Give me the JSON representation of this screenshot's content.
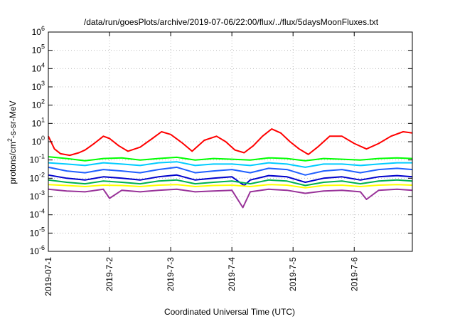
{
  "chart_data": {
    "type": "line",
    "title": "/data/run/goesPlots/archive/2019-07-06/22:00/flux/../flux/5daysMoonFluxes.txt",
    "xlabel": "Coordinated Universal Time (UTC)",
    "ylabel": "protons/cm²-s-sr-MeV",
    "ylabel_parts": {
      "before": "protons/cm",
      "sup": "2",
      "after": "-s-sr-MeV"
    },
    "x_unit": "days since 2019-07-01 00:00 UTC",
    "xlim": [
      0,
      5.95
    ],
    "ylim": [
      1e-06,
      1000000.0
    ],
    "yscale": "log",
    "grid": true,
    "x_ticks": [
      {
        "value": 0,
        "label": "2019-07-1"
      },
      {
        "value": 1,
        "label": "2019-7-2"
      },
      {
        "value": 2,
        "label": "2019-7-3"
      },
      {
        "value": 3,
        "label": "2019-7-4"
      },
      {
        "value": 4,
        "label": "2019-7-5"
      },
      {
        "value": 5,
        "label": "2019-7-6"
      }
    ],
    "y_ticks": [
      {
        "value": 1e-06,
        "base": "10",
        "exp": "-6"
      },
      {
        "value": 1e-05,
        "base": "10",
        "exp": "-5"
      },
      {
        "value": 0.0001,
        "base": "10",
        "exp": "-4"
      },
      {
        "value": 0.001,
        "base": "10",
        "exp": "-3"
      },
      {
        "value": 0.01,
        "base": "10",
        "exp": "-2"
      },
      {
        "value": 0.1,
        "base": "10",
        "exp": "-1"
      },
      {
        "value": 1.0,
        "base": "10",
        "exp": "0"
      },
      {
        "value": 10.0,
        "base": "10",
        "exp": "1"
      },
      {
        "value": 100.0,
        "base": "10",
        "exp": "2"
      },
      {
        "value": 1000.0,
        "base": "10",
        "exp": "3"
      },
      {
        "value": 10000.0,
        "base": "10",
        "exp": "4"
      },
      {
        "value": 100000.0,
        "base": "10",
        "exp": "5"
      },
      {
        "value": 1000000.0,
        "base": "10",
        "exp": "6"
      }
    ],
    "series": [
      {
        "color": "#ff0000",
        "x": [
          0,
          0.1,
          0.2,
          0.35,
          0.5,
          0.6,
          0.75,
          0.9,
          1.0,
          1.15,
          1.3,
          1.5,
          1.7,
          1.85,
          2.0,
          2.2,
          2.35,
          2.55,
          2.75,
          2.9,
          3.05,
          3.2,
          3.35,
          3.5,
          3.65,
          3.8,
          3.95,
          4.1,
          4.25,
          4.4,
          4.6,
          4.8,
          5.0,
          5.2,
          5.4,
          5.6,
          5.8,
          5.95
        ],
        "y": [
          2.0,
          0.4,
          0.22,
          0.18,
          0.25,
          0.35,
          0.8,
          2.0,
          1.5,
          0.6,
          0.3,
          0.5,
          1.5,
          3.5,
          2.5,
          0.8,
          0.3,
          1.2,
          2.0,
          1.0,
          0.35,
          0.25,
          0.6,
          2.0,
          5.0,
          3.0,
          1.0,
          0.4,
          0.2,
          0.5,
          2.0,
          2.0,
          0.8,
          0.4,
          0.8,
          2.0,
          3.5,
          3.0
        ]
      },
      {
        "color": "#00ff00",
        "x": [
          0,
          0.3,
          0.6,
          0.9,
          1.2,
          1.5,
          1.8,
          2.1,
          2.4,
          2.7,
          3.0,
          3.3,
          3.6,
          3.9,
          4.2,
          4.5,
          4.8,
          5.1,
          5.4,
          5.7,
          5.95
        ],
        "y": [
          0.15,
          0.12,
          0.09,
          0.12,
          0.13,
          0.1,
          0.12,
          0.14,
          0.1,
          0.12,
          0.11,
          0.1,
          0.13,
          0.12,
          0.09,
          0.12,
          0.11,
          0.1,
          0.12,
          0.13,
          0.12
        ]
      },
      {
        "color": "#00ccff",
        "x": [
          0,
          0.3,
          0.6,
          0.9,
          1.2,
          1.5,
          1.8,
          2.1,
          2.4,
          2.7,
          3.0,
          3.3,
          3.6,
          3.9,
          4.2,
          4.5,
          4.8,
          5.1,
          5.4,
          5.7,
          5.95
        ],
        "y": [
          0.07,
          0.06,
          0.05,
          0.07,
          0.06,
          0.05,
          0.07,
          0.08,
          0.05,
          0.06,
          0.06,
          0.05,
          0.07,
          0.06,
          0.04,
          0.06,
          0.06,
          0.05,
          0.06,
          0.07,
          0.07
        ]
      },
      {
        "color": "#2060ff",
        "x": [
          0,
          0.3,
          0.6,
          0.9,
          1.2,
          1.5,
          1.8,
          2.1,
          2.4,
          2.7,
          3.0,
          3.3,
          3.6,
          3.9,
          4.2,
          4.5,
          4.8,
          5.1,
          5.4,
          5.7,
          5.95
        ],
        "y": [
          0.04,
          0.025,
          0.02,
          0.03,
          0.025,
          0.02,
          0.03,
          0.04,
          0.02,
          0.025,
          0.03,
          0.02,
          0.035,
          0.03,
          0.015,
          0.025,
          0.03,
          0.02,
          0.03,
          0.035,
          0.03
        ]
      },
      {
        "color": "#0000cc",
        "x": [
          0,
          0.3,
          0.6,
          0.9,
          1.2,
          1.5,
          1.8,
          2.1,
          2.4,
          2.7,
          3.0,
          3.2,
          3.3,
          3.6,
          3.9,
          4.2,
          4.5,
          4.8,
          5.1,
          5.4,
          5.7,
          5.95
        ],
        "y": [
          0.015,
          0.01,
          0.008,
          0.012,
          0.01,
          0.008,
          0.012,
          0.015,
          0.008,
          0.01,
          0.012,
          0.004,
          0.008,
          0.014,
          0.012,
          0.006,
          0.01,
          0.012,
          0.008,
          0.012,
          0.014,
          0.012
        ]
      },
      {
        "color": "#00b050",
        "x": [
          0,
          0.3,
          0.6,
          0.9,
          1.2,
          1.5,
          1.8,
          2.1,
          2.4,
          2.7,
          3.0,
          3.3,
          3.6,
          3.9,
          4.2,
          4.5,
          4.8,
          5.1,
          5.4,
          5.7,
          5.95
        ],
        "y": [
          0.008,
          0.006,
          0.005,
          0.007,
          0.006,
          0.005,
          0.007,
          0.008,
          0.005,
          0.006,
          0.007,
          0.005,
          0.008,
          0.007,
          0.004,
          0.006,
          0.007,
          0.005,
          0.007,
          0.008,
          0.007
        ]
      },
      {
        "color": "#ffff00",
        "x": [
          0,
          0.3,
          0.6,
          0.9,
          1.2,
          1.5,
          1.8,
          2.1,
          2.4,
          2.7,
          3.0,
          3.3,
          3.6,
          3.9,
          4.2,
          4.5,
          4.8,
          5.1,
          5.4,
          5.7,
          5.95
        ],
        "y": [
          0.0045,
          0.004,
          0.0035,
          0.0042,
          0.004,
          0.0035,
          0.0042,
          0.0045,
          0.0035,
          0.004,
          0.0042,
          0.0035,
          0.0045,
          0.0042,
          0.003,
          0.004,
          0.0042,
          0.0035,
          0.0042,
          0.0045,
          0.0042
        ]
      },
      {
        "color": "#993399",
        "x": [
          0,
          0.3,
          0.6,
          0.9,
          1.0,
          1.2,
          1.5,
          1.8,
          2.1,
          2.4,
          2.7,
          3.0,
          3.18,
          3.3,
          3.6,
          3.9,
          4.2,
          4.5,
          4.8,
          5.1,
          5.2,
          5.4,
          5.7,
          5.95
        ],
        "y": [
          0.0025,
          0.002,
          0.0018,
          0.0025,
          0.0008,
          0.0022,
          0.0018,
          0.0022,
          0.0025,
          0.0018,
          0.002,
          0.0022,
          0.00025,
          0.0018,
          0.0025,
          0.0022,
          0.0015,
          0.002,
          0.0022,
          0.0018,
          0.0007,
          0.0022,
          0.0025,
          0.0022
        ]
      }
    ]
  }
}
